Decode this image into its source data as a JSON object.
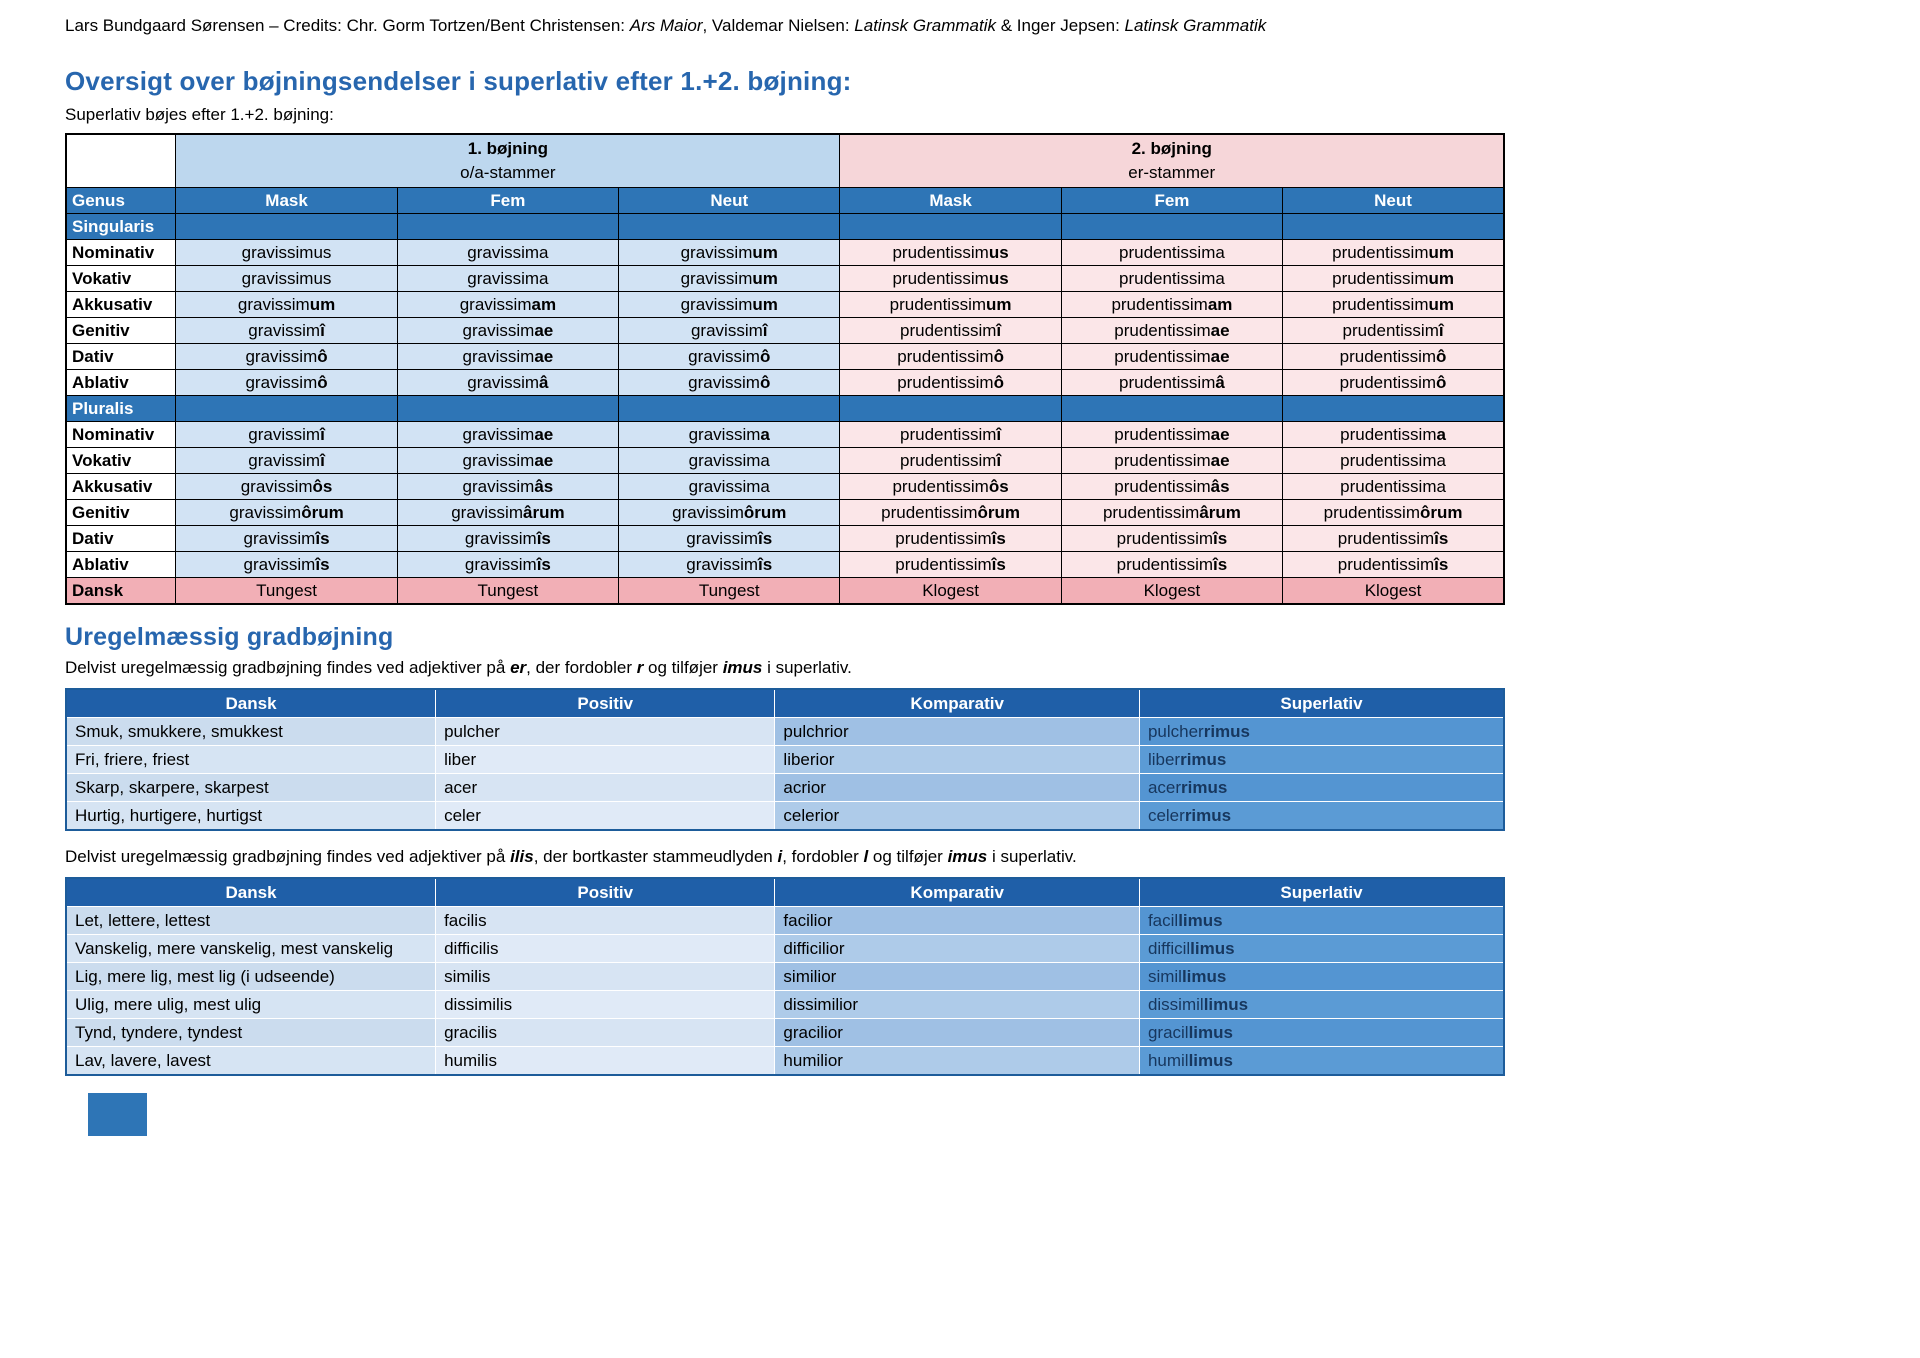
{
  "colors": {
    "heading_blue": "#2766ae",
    "table_header_blue": "#2e75b6",
    "blue_band": "#bdd7ee",
    "blue_cell": "#d2e3f4",
    "pink_band": "#f6d6d9",
    "pink_cell": "#fbe6e8",
    "dansk_row_pink": "#f2afb6",
    "grad_header_blue": "#1f5fa8",
    "superlativ_column_blue": "#5b9bd5"
  },
  "credit": {
    "segments": [
      {
        "t": "Lars Bundgaard Sørensen – Credits: Chr. Gorm Tortzen/Bent Christensen: "
      },
      {
        "t": "Ars Maior",
        "i": true
      },
      {
        "t": ", Valdemar Nielsen: "
      },
      {
        "t": "Latinsk Grammatik",
        "i": true
      },
      {
        "t": " & Inger Jepsen: "
      },
      {
        "t": "Latinsk Grammatik",
        "i": true
      }
    ]
  },
  "section1": {
    "title": "Oversigt over bøjningsendelser i superlativ efter 1.+2. bøjning:",
    "subtitle": "Superlativ bøjes efter 1.+2. bøjning:",
    "table": {
      "groups": [
        {
          "title": "1. bøjning",
          "subtitle": "o/a-stammer"
        },
        {
          "title": "2. bøjning",
          "subtitle": "er-stammer"
        }
      ],
      "genus_header": [
        "Genus",
        "Mask",
        "Fem",
        "Neut",
        "Mask",
        "Fem",
        "Neut"
      ],
      "sections": [
        {
          "label": "Singularis",
          "rows": [
            {
              "label": "Nominativ",
              "cells": [
                [
                  "gravissimus",
                  ""
                ],
                [
                  "gravissima",
                  ""
                ],
                [
                  "gravissim",
                  "um"
                ],
                [
                  "prudentissim",
                  "us"
                ],
                [
                  "prudentissima",
                  ""
                ],
                [
                  "prudentissim",
                  "um"
                ]
              ]
            },
            {
              "label": "Vokativ",
              "cells": [
                [
                  "gravissimus",
                  ""
                ],
                [
                  "gravissima",
                  ""
                ],
                [
                  "gravissim",
                  "um"
                ],
                [
                  "prudentissim",
                  "us"
                ],
                [
                  "prudentissima",
                  ""
                ],
                [
                  "prudentissim",
                  "um"
                ]
              ]
            },
            {
              "label": "Akkusativ",
              "cells": [
                [
                  "gravissim",
                  "um"
                ],
                [
                  "gravissim",
                  "am"
                ],
                [
                  "gravissim",
                  "um"
                ],
                [
                  "prudentissim",
                  "um"
                ],
                [
                  "prudentissim",
                  "am"
                ],
                [
                  "prudentissim",
                  "um"
                ]
              ]
            },
            {
              "label": "Genitiv",
              "cells": [
                [
                  "gravissim",
                  "î"
                ],
                [
                  "gravissim",
                  "ae"
                ],
                [
                  "gravissim",
                  "î"
                ],
                [
                  "prudentissim",
                  "î"
                ],
                [
                  "prudentissim",
                  "ae"
                ],
                [
                  "prudentissim",
                  "î"
                ]
              ]
            },
            {
              "label": "Dativ",
              "cells": [
                [
                  "gravissim",
                  "ô"
                ],
                [
                  "gravissim",
                  "ae"
                ],
                [
                  "gravissim",
                  "ô"
                ],
                [
                  "prudentissim",
                  "ô"
                ],
                [
                  "prudentissim",
                  "ae"
                ],
                [
                  "prudentissim",
                  "ô"
                ]
              ]
            },
            {
              "label": "Ablativ",
              "cells": [
                [
                  "gravissim",
                  "ô"
                ],
                [
                  "gravissim",
                  "â"
                ],
                [
                  "gravissim",
                  "ô"
                ],
                [
                  "prudentissim",
                  "ô"
                ],
                [
                  "prudentissim",
                  "â"
                ],
                [
                  "prudentissim",
                  "ô"
                ]
              ]
            }
          ]
        },
        {
          "label": "Pluralis",
          "rows": [
            {
              "label": "Nominativ",
              "cells": [
                [
                  "gravissim",
                  "î"
                ],
                [
                  "gravissim",
                  "ae"
                ],
                [
                  "gravissim",
                  "a"
                ],
                [
                  "prudentissim",
                  "î"
                ],
                [
                  "prudentissim",
                  "ae"
                ],
                [
                  "prudentissim",
                  "a"
                ]
              ]
            },
            {
              "label": "Vokativ",
              "cells": [
                [
                  "gravissim",
                  "î"
                ],
                [
                  "gravissim",
                  "ae"
                ],
                [
                  "gravissima",
                  ""
                ],
                [
                  "prudentissim",
                  "î"
                ],
                [
                  "prudentissim",
                  "ae"
                ],
                [
                  "prudentissima",
                  ""
                ]
              ]
            },
            {
              "label": "Akkusativ",
              "cells": [
                [
                  "gravissim",
                  "ôs"
                ],
                [
                  "gravissim",
                  "âs"
                ],
                [
                  "gravissima",
                  ""
                ],
                [
                  "prudentissim",
                  "ôs"
                ],
                [
                  "prudentissim",
                  "âs"
                ],
                [
                  "prudentissima",
                  ""
                ]
              ]
            },
            {
              "label": "Genitiv",
              "cells": [
                [
                  "gravissim",
                  "ôrum"
                ],
                [
                  "gravissim",
                  "ârum"
                ],
                [
                  "gravissim",
                  "ôrum"
                ],
                [
                  "prudentissim",
                  "ôrum"
                ],
                [
                  "prudentissim",
                  "ârum"
                ],
                [
                  "prudentissim",
                  "ôrum"
                ]
              ]
            },
            {
              "label": "Dativ",
              "cells": [
                [
                  "gravissim",
                  "îs"
                ],
                [
                  "gravissim",
                  "îs"
                ],
                [
                  "gravissim",
                  "îs"
                ],
                [
                  "prudentissim",
                  "îs"
                ],
                [
                  "prudentissim",
                  "îs"
                ],
                [
                  "prudentissim",
                  "îs"
                ]
              ]
            },
            {
              "label": "Ablativ",
              "cells": [
                [
                  "gravissim",
                  "îs"
                ],
                [
                  "gravissim",
                  "îs"
                ],
                [
                  "gravissim",
                  "îs"
                ],
                [
                  "prudentissim",
                  "îs"
                ],
                [
                  "prudentissim",
                  "îs"
                ],
                [
                  "prudentissim",
                  "îs"
                ]
              ]
            }
          ]
        }
      ],
      "dansk_row": {
        "label": "Dansk",
        "cells": [
          "Tungest",
          "Tungest",
          "Tungest",
          "Klogest",
          "Klogest",
          "Klogest"
        ]
      }
    }
  },
  "section2": {
    "title": "Uregelmæssig gradbøjning",
    "para_er": [
      {
        "t": "Delvist uregelmæssig gradbøjning findes ved adjektiver på "
      },
      {
        "t": "er",
        "bi": true
      },
      {
        "t": ", der fordobler "
      },
      {
        "t": "r",
        "bi": true
      },
      {
        "t": " og tilføjer "
      },
      {
        "t": "imus",
        "bi": true
      },
      {
        "t": " i superlativ."
      }
    ],
    "table_er": {
      "headers": [
        "Dansk",
        "Positiv",
        "Komparativ",
        "Superlativ"
      ],
      "rows": [
        {
          "dansk": "Smuk, smukkere, smukkest",
          "positiv": "pulcher",
          "komparativ": "pulchrior",
          "superlativ": [
            "pulcher",
            "rimus"
          ]
        },
        {
          "dansk": "Fri, friere, friest",
          "positiv": "liber",
          "komparativ": "liberior",
          "superlativ": [
            "liber",
            "rimus"
          ]
        },
        {
          "dansk": "Skarp, skarpere, skarpest",
          "positiv": "acer",
          "komparativ": "acrior",
          "superlativ": [
            "acer",
            "rimus"
          ]
        },
        {
          "dansk": "Hurtig, hurtigere, hurtigst",
          "positiv": "celer",
          "komparativ": "celerior",
          "superlativ": [
            "celer",
            "rimus"
          ]
        }
      ]
    },
    "para_ilis": [
      {
        "t": "Delvist uregelmæssig gradbøjning findes ved adjektiver på "
      },
      {
        "t": "ilis",
        "bi": true
      },
      {
        "t": ", der bortkaster stammeudlyden "
      },
      {
        "t": "i",
        "bi": true
      },
      {
        "t": ", fordobler "
      },
      {
        "t": "l",
        "bi": true
      },
      {
        "t": " og tilføjer "
      },
      {
        "t": "imus",
        "bi": true
      },
      {
        "t": " i superlativ."
      }
    ],
    "table_ilis": {
      "headers": [
        "Dansk",
        "Positiv",
        "Komparativ",
        "Superlativ"
      ],
      "rows": [
        {
          "dansk": "Let, lettere, lettest",
          "positiv": "facilis",
          "komparativ": "facilior",
          "superlativ": [
            "facil",
            "limus"
          ]
        },
        {
          "dansk": "Vanskelig, mere vanskelig, mest vanskelig",
          "positiv": "difficilis",
          "komparativ": "difficilior",
          "superlativ": [
            "difficil",
            "limus"
          ]
        },
        {
          "dansk": "Lig, mere lig, mest lig (i udseende)",
          "positiv": "similis",
          "komparativ": "similior",
          "superlativ": [
            "simil",
            "limus"
          ]
        },
        {
          "dansk": "Ulig, mere ulig, mest ulig",
          "positiv": "dissimilis",
          "komparativ": "dissimilior",
          "superlativ": [
            "dissimil",
            "limus"
          ]
        },
        {
          "dansk": "Tynd, tyndere, tyndest",
          "positiv": "gracilis",
          "komparativ": "gracilior",
          "superlativ": [
            "gracil",
            "limus"
          ]
        },
        {
          "dansk": "Lav, lavere, lavest",
          "positiv": "humilis",
          "komparativ": "humilior",
          "superlativ": [
            "humil",
            "limus"
          ]
        }
      ]
    }
  }
}
